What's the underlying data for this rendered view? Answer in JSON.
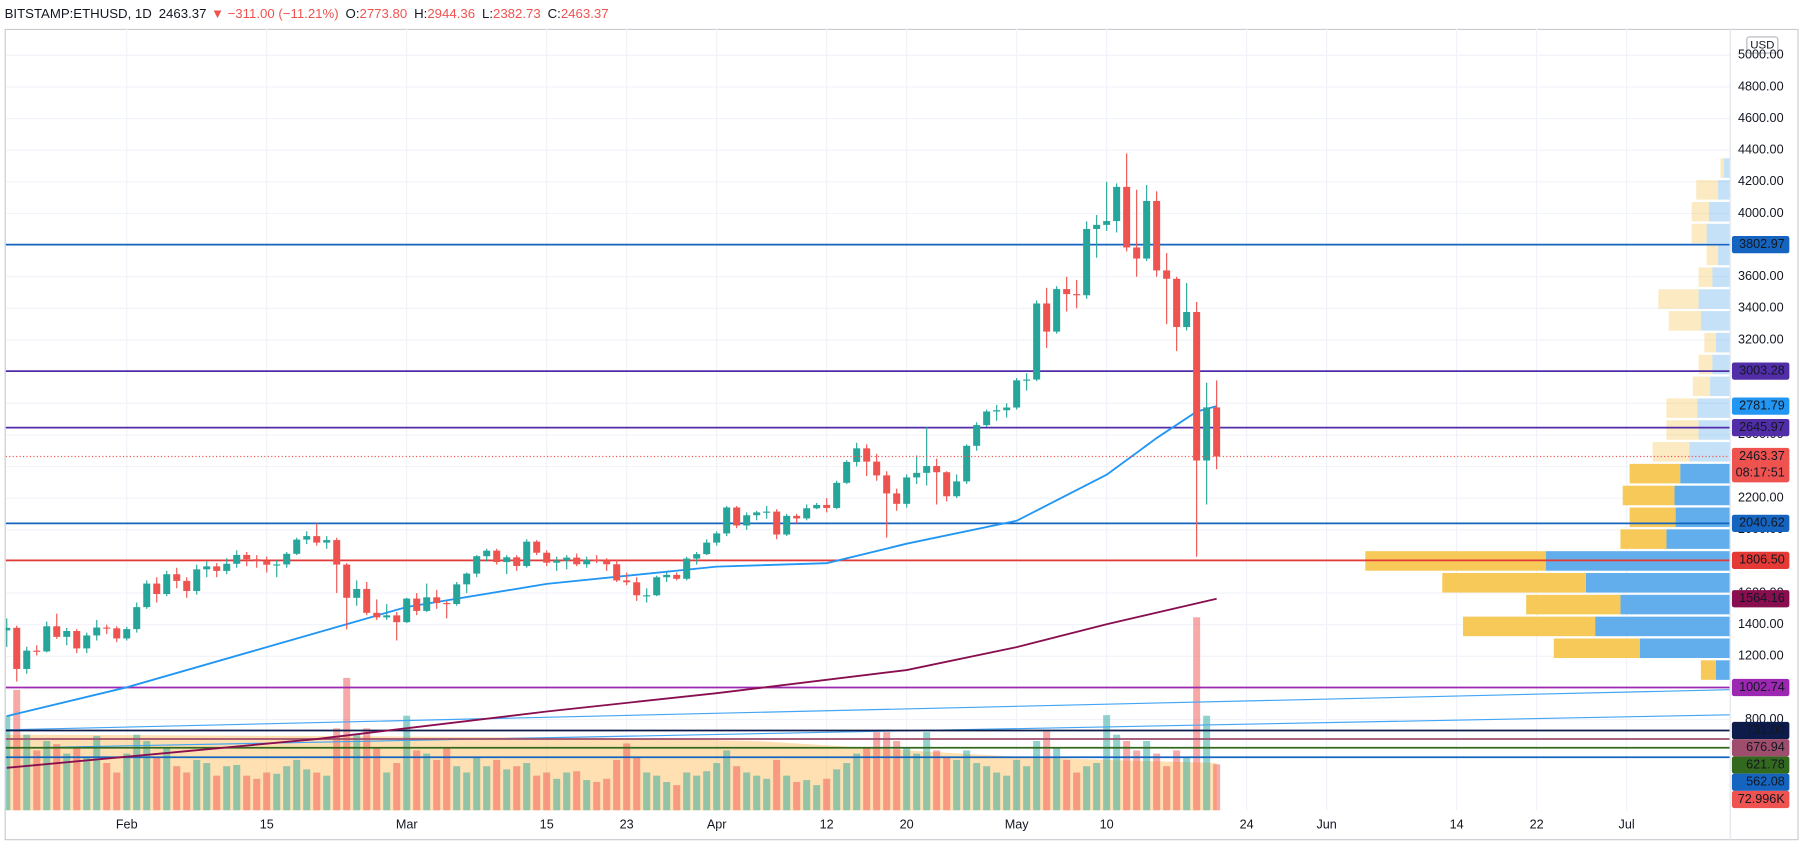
{
  "header": {
    "symbol": "BITSTAMP:ETHUSD, 1D",
    "last": "2463.37",
    "change": "−311.00 (−11.21%)",
    "open_key": "O:",
    "open": "2773.80",
    "high_key": "H:",
    "high": "2944.36",
    "low_key": "L:",
    "low": "2382.73",
    "close_key": "C:",
    "close": "2463.37"
  },
  "chart_data": {
    "type": "candlestick",
    "currency": "USD",
    "countdown": "08:17:51",
    "up_color": "#26a69a",
    "down_color": "#ef5350",
    "x": [
      0,
      1,
      2,
      3,
      4,
      5,
      6,
      7,
      8,
      9,
      10,
      11,
      12,
      13,
      14,
      15,
      16,
      17,
      18,
      19,
      20,
      21,
      22,
      23,
      24,
      25,
      26,
      27,
      28,
      29,
      30,
      31,
      32,
      33,
      34,
      35,
      36,
      37,
      38,
      39,
      40,
      41,
      42,
      43,
      44,
      45,
      46,
      47,
      48,
      49,
      50,
      51,
      52,
      53,
      54,
      55,
      56,
      57,
      58,
      59,
      60,
      61,
      62,
      63,
      64,
      65,
      66,
      67,
      68,
      69,
      70,
      71,
      72,
      73,
      74,
      75,
      76,
      77,
      78,
      79,
      80,
      81,
      82,
      83,
      84,
      85,
      86,
      87,
      88,
      89,
      90,
      91,
      92,
      93,
      94,
      95,
      96,
      97,
      98,
      99,
      100,
      101,
      102,
      103,
      104,
      105,
      106,
      107,
      108,
      109,
      110,
      111,
      112,
      113,
      114,
      115,
      116,
      117,
      118,
      119,
      120,
      121
    ],
    "ohlc": [
      [
        1364,
        1440,
        1260,
        1380
      ],
      [
        1380,
        1394,
        1040,
        1120
      ],
      [
        1120,
        1260,
        1090,
        1236
      ],
      [
        1236,
        1270,
        1205,
        1231
      ],
      [
        1231,
        1420,
        1225,
        1390
      ],
      [
        1390,
        1470,
        1310,
        1323
      ],
      [
        1323,
        1380,
        1270,
        1360
      ],
      [
        1360,
        1372,
        1220,
        1250
      ],
      [
        1250,
        1350,
        1220,
        1332
      ],
      [
        1332,
        1430,
        1300,
        1382
      ],
      [
        1382,
        1400,
        1340,
        1377
      ],
      [
        1377,
        1390,
        1290,
        1313
      ],
      [
        1313,
        1385,
        1300,
        1372
      ],
      [
        1372,
        1540,
        1350,
        1511
      ],
      [
        1511,
        1680,
        1500,
        1660
      ],
      [
        1660,
        1700,
        1540,
        1594
      ],
      [
        1594,
        1740,
        1580,
        1719
      ],
      [
        1719,
        1760,
        1630,
        1677
      ],
      [
        1677,
        1700,
        1570,
        1613
      ],
      [
        1613,
        1780,
        1590,
        1750
      ],
      [
        1750,
        1800,
        1700,
        1769
      ],
      [
        1769,
        1790,
        1700,
        1740
      ],
      [
        1740,
        1820,
        1720,
        1785
      ],
      [
        1785,
        1870,
        1760,
        1841
      ],
      [
        1841,
        1860,
        1770,
        1814
      ],
      [
        1814,
        1840,
        1760,
        1804
      ],
      [
        1804,
        1830,
        1730,
        1779
      ],
      [
        1779,
        1810,
        1700,
        1781
      ],
      [
        1781,
        1860,
        1760,
        1848
      ],
      [
        1848,
        1950,
        1840,
        1938
      ],
      [
        1938,
        1990,
        1910,
        1960
      ],
      [
        1960,
        2040,
        1900,
        1919
      ],
      [
        1919,
        1960,
        1880,
        1935
      ],
      [
        1935,
        1950,
        1600,
        1780
      ],
      [
        1780,
        1790,
        1370,
        1570
      ],
      [
        1570,
        1680,
        1520,
        1626
      ],
      [
        1626,
        1670,
        1460,
        1475
      ],
      [
        1475,
        1560,
        1430,
        1446
      ],
      [
        1446,
        1530,
        1430,
        1459
      ],
      [
        1459,
        1480,
        1300,
        1416
      ],
      [
        1416,
        1570,
        1410,
        1565
      ],
      [
        1565,
        1600,
        1460,
        1487
      ],
      [
        1487,
        1660,
        1480,
        1573
      ],
      [
        1573,
        1620,
        1500,
        1537
      ],
      [
        1537,
        1550,
        1440,
        1531
      ],
      [
        1531,
        1670,
        1520,
        1655
      ],
      [
        1655,
        1730,
        1600,
        1723
      ],
      [
        1723,
        1840,
        1700,
        1833
      ],
      [
        1833,
        1880,
        1800,
        1868
      ],
      [
        1868,
        1880,
        1780,
        1796
      ],
      [
        1796,
        1840,
        1720,
        1826
      ],
      [
        1826,
        1840,
        1740,
        1771
      ],
      [
        1771,
        1940,
        1760,
        1925
      ],
      [
        1925,
        1935,
        1840,
        1855
      ],
      [
        1855,
        1870,
        1770,
        1792
      ],
      [
        1792,
        1830,
        1740,
        1806
      ],
      [
        1806,
        1840,
        1750,
        1824
      ],
      [
        1824,
        1850,
        1770,
        1782
      ],
      [
        1782,
        1830,
        1760,
        1810
      ],
      [
        1810,
        1840,
        1790,
        1806
      ],
      [
        1806,
        1820,
        1740,
        1782
      ],
      [
        1782,
        1810,
        1670,
        1680
      ],
      [
        1680,
        1730,
        1650,
        1668
      ],
      [
        1668,
        1700,
        1550,
        1586
      ],
      [
        1586,
        1630,
        1540,
        1586
      ],
      [
        1586,
        1710,
        1580,
        1700
      ],
      [
        1700,
        1730,
        1670,
        1715
      ],
      [
        1715,
        1730,
        1680,
        1690
      ],
      [
        1690,
        1830,
        1680,
        1818
      ],
      [
        1818,
        1860,
        1780,
        1846
      ],
      [
        1846,
        1940,
        1840,
        1919
      ],
      [
        1919,
        1990,
        1900,
        1977
      ],
      [
        1977,
        2150,
        1960,
        2141
      ],
      [
        2141,
        2150,
        2010,
        2027
      ],
      [
        2027,
        2110,
        2000,
        2092
      ],
      [
        2092,
        2120,
        2060,
        2110
      ],
      [
        2110,
        2150,
        2070,
        2115
      ],
      [
        2115,
        2130,
        1940,
        1970
      ],
      [
        1970,
        2100,
        1960,
        2088
      ],
      [
        2088,
        2100,
        2040,
        2072
      ],
      [
        2072,
        2160,
        2060,
        2136
      ],
      [
        2136,
        2170,
        2130,
        2157
      ],
      [
        2157,
        2200,
        2110,
        2138
      ],
      [
        2138,
        2310,
        2130,
        2297
      ],
      [
        2297,
        2440,
        2290,
        2429
      ],
      [
        2429,
        2550,
        2400,
        2515
      ],
      [
        2515,
        2540,
        2340,
        2431
      ],
      [
        2431,
        2480,
        2310,
        2344
      ],
      [
        2344,
        2370,
        1950,
        2230
      ],
      [
        2230,
        2260,
        2120,
        2164
      ],
      [
        2164,
        2350,
        2140,
        2331
      ],
      [
        2331,
        2470,
        2290,
        2360
      ],
      [
        2360,
        2650,
        2280,
        2403
      ],
      [
        2403,
        2450,
        2160,
        2364
      ],
      [
        2364,
        2370,
        2180,
        2212
      ],
      [
        2212,
        2350,
        2200,
        2306
      ],
      [
        2306,
        2540,
        2290,
        2531
      ],
      [
        2531,
        2680,
        2500,
        2662
      ],
      [
        2662,
        2760,
        2650,
        2748
      ],
      [
        2748,
        2790,
        2690,
        2756
      ],
      [
        2756,
        2800,
        2710,
        2773
      ],
      [
        2773,
        2960,
        2760,
        2945
      ],
      [
        2945,
        2990,
        2880,
        2950
      ],
      [
        2950,
        3450,
        2940,
        3431
      ],
      [
        3431,
        3530,
        3150,
        3253
      ],
      [
        3253,
        3540,
        3240,
        3522
      ],
      [
        3522,
        3600,
        3380,
        3490
      ],
      [
        3490,
        3580,
        3400,
        3483
      ],
      [
        3483,
        3950,
        3460,
        3902
      ],
      [
        3902,
        3990,
        3720,
        3928
      ],
      [
        3928,
        4200,
        3890,
        3952
      ],
      [
        3952,
        4190,
        3880,
        4168
      ],
      [
        4168,
        4380,
        3760,
        3785
      ],
      [
        3785,
        4150,
        3600,
        3715
      ],
      [
        3715,
        4180,
        3700,
        4079
      ],
      [
        4079,
        4140,
        3600,
        3640
      ],
      [
        3640,
        3750,
        3300,
        3587
      ],
      [
        3587,
        3600,
        3130,
        3282
      ],
      [
        3282,
        3560,
        3260,
        3377
      ],
      [
        3377,
        3440,
        1830,
        2438
      ],
      [
        2438,
        2930,
        2160,
        2773.8
      ],
      [
        2773.8,
        2944.36,
        2382.73,
        2463.37
      ]
    ],
    "volume": {
      "values": [
        150000,
        191000,
        120000,
        95000,
        110000,
        105000,
        90000,
        100000,
        85000,
        118000,
        75000,
        60000,
        90000,
        120000,
        110000,
        85000,
        100000,
        70000,
        60000,
        80000,
        75000,
        55000,
        70000,
        72000,
        55000,
        50000,
        60000,
        58000,
        70000,
        80000,
        65000,
        60000,
        55000,
        130000,
        210000,
        120000,
        130000,
        100000,
        60000,
        75000,
        150000,
        95000,
        90000,
        80000,
        100000,
        70000,
        60000,
        85000,
        70000,
        80000,
        65000,
        70000,
        75000,
        55000,
        60000,
        50000,
        60000,
        62000,
        48000,
        45000,
        50000,
        80000,
        106000,
        85000,
        60000,
        55000,
        45000,
        40000,
        60000,
        55000,
        62000,
        75000,
        95000,
        70000,
        60000,
        55000,
        50000,
        80000,
        55000,
        45000,
        48000,
        40000,
        50000,
        65000,
        75000,
        90000,
        100000,
        124000,
        124000,
        110000,
        100000,
        90000,
        124000,
        95000,
        85000,
        80000,
        95000,
        75000,
        70000,
        60000,
        55000,
        80000,
        70000,
        110000,
        125000,
        100000,
        80000,
        60000,
        70000,
        75000,
        151000,
        120000,
        110000,
        95000,
        110000,
        90000,
        70000,
        95000,
        85000,
        306000,
        150000,
        72996
      ],
      "last_label": "72.996K",
      "label_color": "#ef5350"
    },
    "volume_ma": {
      "color": "#ff9800",
      "x": [
        0,
        30,
        60,
        75,
        90,
        101,
        110,
        121
      ],
      "values": [
        120000,
        118000,
        115000,
        110000,
        95000,
        85000,
        80000,
        75000
      ]
    },
    "xlim": [
      -0.1,
      172.3
    ],
    "xticks": [
      {
        "value": 12,
        "label": "Feb"
      },
      {
        "value": 26,
        "label": "15"
      },
      {
        "value": 40,
        "label": "Mar"
      },
      {
        "value": 54,
        "label": "15"
      },
      {
        "value": 62,
        "label": "23"
      },
      {
        "value": 71,
        "label": "Apr"
      },
      {
        "value": 82,
        "label": "12"
      },
      {
        "value": 90,
        "label": "20"
      },
      {
        "value": 101,
        "label": "May"
      },
      {
        "value": 110,
        "label": "10"
      },
      {
        "value": 124,
        "label": "24"
      },
      {
        "value": 132,
        "label": "Jun"
      },
      {
        "value": 145,
        "label": "14"
      },
      {
        "value": 153,
        "label": "22"
      },
      {
        "value": 162,
        "label": "Jul"
      }
    ],
    "ylim": [
      226,
      5167
    ],
    "yticks": [
      {
        "value": 800,
        "label": "800.00"
      },
      {
        "value": 1000,
        "label": "1000.00"
      },
      {
        "value": 1200,
        "label": "1200.00"
      },
      {
        "value": 1400,
        "label": "1400.00"
      },
      {
        "value": 1600,
        "label": "1600.00"
      },
      {
        "value": 1800,
        "label": "1800.00"
      },
      {
        "value": 2000,
        "label": "2000.00"
      },
      {
        "value": 2200,
        "label": "2200.00"
      },
      {
        "value": 2400,
        "label": "2400.00"
      },
      {
        "value": 2600,
        "label": "2600.00"
      },
      {
        "value": 2800,
        "label": "2800.00"
      },
      {
        "value": 3000,
        "label": "3000.00"
      },
      {
        "value": 3200,
        "label": "3200.00"
      },
      {
        "value": 3400,
        "label": "3400.00"
      },
      {
        "value": 3600,
        "label": "3600.00"
      },
      {
        "value": 3800,
        "label": "3800.00"
      },
      {
        "value": 4000,
        "label": "4000.00"
      },
      {
        "value": 4200,
        "label": "4200.00"
      },
      {
        "value": 4400,
        "label": "4400.00"
      },
      {
        "value": 4600,
        "label": "4600.00"
      },
      {
        "value": 4800,
        "label": "4800.00"
      },
      {
        "value": 5000,
        "label": "5000.00"
      }
    ],
    "grid": true,
    "moving_averages": [
      {
        "color": "#2196f3",
        "x": [
          0,
          12,
          26,
          40,
          54,
          71,
          82,
          90,
          101,
          110,
          115,
          119,
          121
        ],
        "values": [
          822,
          1004,
          1258,
          1512,
          1658,
          1767,
          1789,
          1912,
          2057,
          2348,
          2580,
          2747,
          2781.79
        ]
      },
      {
        "color": "#880e4f",
        "x": [
          0,
          31,
          54,
          71,
          90,
          101,
          110,
          121
        ],
        "values": [
          495,
          677,
          851,
          967,
          1113,
          1258,
          1403,
          1564.16
        ]
      }
    ],
    "trendlines": [
      {
        "color": "#42a5f5",
        "x": [
          -0.1,
          172.3
        ],
        "values": [
          735,
          989
        ]
      },
      {
        "color": "#42a5f5",
        "x": [
          -0.1,
          172.3
        ],
        "values": [
          619,
          830
        ]
      }
    ],
    "levels": [
      {
        "value": 3802.97,
        "color": "#1565c0"
      },
      {
        "value": 3003.28,
        "color": "#512da8"
      },
      {
        "value": 2645.97,
        "color": "#512da8"
      },
      {
        "value": 2040.62,
        "color": "#1565c0"
      },
      {
        "value": 1806.5,
        "label": "1806.50",
        "color": "#e53935"
      },
      {
        "value": 1002.74,
        "color": "#9c27b0"
      },
      {
        "value": 731,
        "label": "731.00",
        "color": "#0d1b4a"
      },
      {
        "value": 676.94,
        "color": "#9e4d6c"
      },
      {
        "value": 621.78,
        "color": "#33691e"
      },
      {
        "value": 562.08,
        "color": "#1565c0"
      }
    ],
    "volume_profile": {
      "up_color": "#f7c64f",
      "down_color": "#5aa9ea",
      "value_area": [
        1044,
        2424
      ],
      "bins": [
        1044,
        1182,
        1320,
        1458,
        1596,
        1734,
        1872,
        2010,
        2148,
        2286,
        2424,
        2562,
        2700,
        2838,
        2976,
        3114,
        3252,
        3390,
        3528,
        3666,
        3804,
        3942,
        4080,
        4218,
        4356
      ],
      "up": [
        13,
        75,
        115,
        82,
        125,
        157,
        40,
        40,
        45,
        44,
        32,
        28,
        27,
        15,
        12,
        10,
        28,
        35,
        12,
        10,
        13,
        15,
        19,
        3
      ],
      "down": [
        12,
        78,
        117,
        95,
        125,
        160,
        55,
        47,
        48,
        43,
        35,
        27,
        28,
        17,
        15,
        12,
        25,
        27,
        15,
        10,
        20,
        18,
        10,
        5
      ]
    }
  }
}
